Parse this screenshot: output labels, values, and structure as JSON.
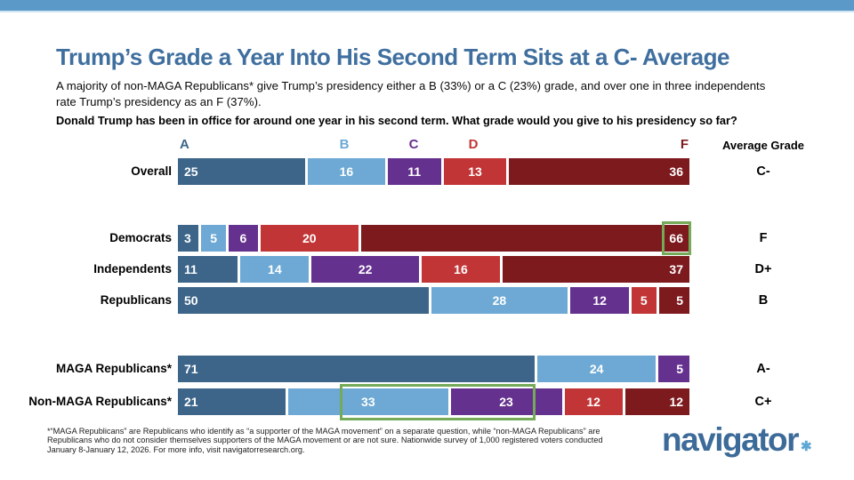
{
  "accent": {
    "topbar_color": "#5b99c9",
    "title_color": "#3f6f9f",
    "highlight_color": "#74aa58"
  },
  "header": {
    "title": "Trump’s Grade a Year Into His Second Term Sits at a C- Average",
    "subtitle_line1": "A majority of non-MAGA Republicans* give Trump’s presidency either a B (33%) or a C (23%) grade, and over one in three independents",
    "subtitle_line2": "rate Trump’s presidency as an F (37%).",
    "question": "Donald Trump has been in office for around one year in his second term. What grade would you give to his presidency so far?"
  },
  "chart_data": {
    "type": "bar",
    "variant": "stacked-horizontal-percent",
    "title": "Trump’s Grade a Year Into His Second Term Sits at a C- Average",
    "grades": [
      "A",
      "B",
      "C",
      "D",
      "F"
    ],
    "grade_colors": {
      "A": "#3c6589",
      "B": "#6da9d4",
      "C": "#65318f",
      "D": "#c23536",
      "F": "#7d1a1e"
    },
    "right_column_header": "Average Grade",
    "rows": [
      {
        "label": "Overall",
        "values": [
          25,
          16,
          11,
          13,
          36
        ],
        "average_grade": "C-"
      },
      {
        "label": "Democrats",
        "values": [
          3,
          5,
          6,
          20,
          66
        ],
        "average_grade": "F"
      },
      {
        "label": "Independents",
        "values": [
          11,
          14,
          22,
          16,
          37
        ],
        "average_grade": "D+"
      },
      {
        "label": "Republicans",
        "values": [
          50,
          28,
          12,
          5,
          5
        ],
        "average_grade": "B"
      },
      {
        "label": "MAGA Republicans*",
        "values": [
          71,
          24,
          5,
          null,
          null
        ],
        "average_grade": "A-"
      },
      {
        "label": "Non-MAGA Republicans*",
        "values": [
          21,
          33,
          23,
          12,
          12
        ],
        "average_grade": "C+"
      }
    ],
    "highlights": [
      {
        "row": "Democrats",
        "kind": "value-box",
        "target": "F value 66",
        "color": "#74aa58"
      },
      {
        "row": "Non-MAGA Republicans*",
        "kind": "segment-span-box",
        "target": "B 33 and C 23 segments",
        "color": "#74aa58"
      }
    ],
    "xlim": [
      0,
      100
    ],
    "unit": "percent",
    "legend_position": "letters-above-first-bar"
  },
  "footnote": {
    "line1": "*“MAGA Republicans” are Republicans who identify as “a supporter of the MAGA movement” on a separate question, while “non-MAGA Republicans” are",
    "line2": "Republicans who do not consider themselves supporters of the MAGA movement or are not sure. Nationwide survey of 1,000 registered voters conducted",
    "line3": "January 8-January 12, 2026. For more info, visit navigatorresearch.org."
  },
  "logo": {
    "text": "navigator",
    "mark": "✱"
  }
}
